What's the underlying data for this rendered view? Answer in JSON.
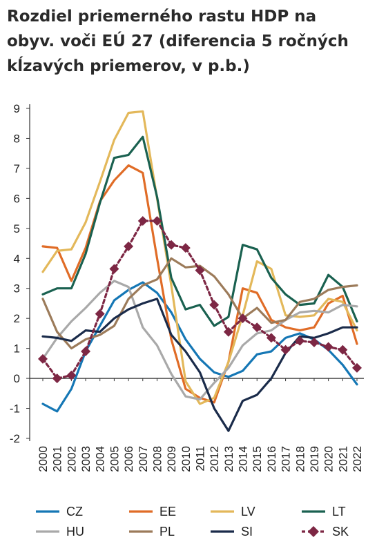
{
  "title_lines": [
    "Rozdiel priemerného rastu HDP na",
    "obyv. voči EÚ 27 (diferencia 5 ročných",
    "kĺzavých priemerov, v p.b.)"
  ],
  "chart_data": {
    "type": "line",
    "title": "Rozdiel priemerného rastu HDP na obyv. voči EÚ 27 (diferencia 5 ročných kĺzavých priemerov, v p.b.)",
    "xlabel": "",
    "ylabel": "",
    "ylim": [
      -2,
      9
    ],
    "yticks": [
      "9",
      "8",
      "7",
      "6",
      "5",
      "4",
      "3",
      "2",
      "1",
      "0",
      "-1",
      "-2"
    ],
    "categories": [
      "2000",
      "2001",
      "2002",
      "2003",
      "2004",
      "2005",
      "2006",
      "2007",
      "2008",
      "2009",
      "2010",
      "2011",
      "2012",
      "2013",
      "2014",
      "2015",
      "2016",
      "2017",
      "2018",
      "2019",
      "2020",
      "2021",
      "2022"
    ],
    "grid": false,
    "legend_position": "bottom",
    "series": [
      {
        "name": "CZ",
        "color": "#1577b5",
        "marker": "none",
        "values": [
          -0.85,
          -1.1,
          -0.35,
          0.9,
          1.75,
          2.6,
          2.95,
          3.2,
          2.85,
          2.2,
          1.3,
          0.65,
          0.2,
          0.05,
          0.25,
          0.8,
          0.9,
          1.35,
          1.5,
          1.3,
          0.95,
          0.45,
          -0.2
        ]
      },
      {
        "name": "EE",
        "color": "#e06c27",
        "marker": "none",
        "values": [
          4.4,
          4.35,
          3.25,
          4.35,
          5.9,
          6.6,
          7.1,
          6.85,
          4.0,
          1.3,
          -0.35,
          -0.65,
          -0.8,
          0.55,
          3.0,
          2.85,
          1.95,
          1.7,
          1.6,
          1.7,
          2.5,
          2.75,
          1.15
        ]
      },
      {
        "name": "LV",
        "color": "#e3b85a",
        "marker": "none",
        "values": [
          3.55,
          4.25,
          4.3,
          5.2,
          6.55,
          7.95,
          8.85,
          8.9,
          6.0,
          3.1,
          -0.1,
          -0.85,
          -0.65,
          0.55,
          2.1,
          3.9,
          3.65,
          2.1,
          2.05,
          2.1,
          2.65,
          2.55,
          1.6
        ]
      },
      {
        "name": "LT",
        "color": "#1a6150",
        "marker": "none",
        "values": [
          2.8,
          3.0,
          3.0,
          4.15,
          5.85,
          7.35,
          7.45,
          8.05,
          6.05,
          3.35,
          2.3,
          2.45,
          1.75,
          2.05,
          4.45,
          4.3,
          3.35,
          2.8,
          2.45,
          2.5,
          3.45,
          3.05,
          1.9
        ]
      },
      {
        "name": "HU",
        "color": "#a9a9a9",
        "marker": "none",
        "values": [
          0.65,
          1.35,
          1.9,
          2.35,
          2.85,
          3.25,
          3.05,
          1.7,
          1.1,
          0.15,
          -0.6,
          -0.7,
          -0.15,
          0.35,
          1.1,
          1.5,
          1.6,
          1.95,
          2.2,
          2.25,
          2.2,
          2.45,
          2.4
        ]
      },
      {
        "name": "PL",
        "color": "#9c7b5a",
        "marker": "none",
        "values": [
          2.65,
          1.55,
          1.0,
          1.3,
          1.45,
          1.75,
          2.65,
          3.1,
          3.3,
          4.0,
          3.7,
          3.75,
          3.4,
          2.8,
          2.0,
          2.35,
          1.85,
          1.95,
          2.55,
          2.65,
          2.95,
          3.05,
          3.1
        ]
      },
      {
        "name": "SI",
        "color": "#1a2b4a",
        "marker": "none",
        "values": [
          1.4,
          1.35,
          1.25,
          1.6,
          1.55,
          2.0,
          2.3,
          2.5,
          2.65,
          1.45,
          0.9,
          0.2,
          -1.0,
          -1.75,
          -0.75,
          -0.55,
          0.0,
          0.85,
          1.4,
          1.35,
          1.5,
          1.7,
          1.7
        ]
      },
      {
        "name": "SK",
        "color": "#7d2744",
        "marker": "diamond",
        "dashed": true,
        "values": [
          0.65,
          0.0,
          0.1,
          0.9,
          2.15,
          3.65,
          4.4,
          5.25,
          5.25,
          4.45,
          4.35,
          3.6,
          2.45,
          1.55,
          2.0,
          1.7,
          1.35,
          0.95,
          1.25,
          1.2,
          1.05,
          0.95,
          0.35
        ]
      }
    ]
  }
}
